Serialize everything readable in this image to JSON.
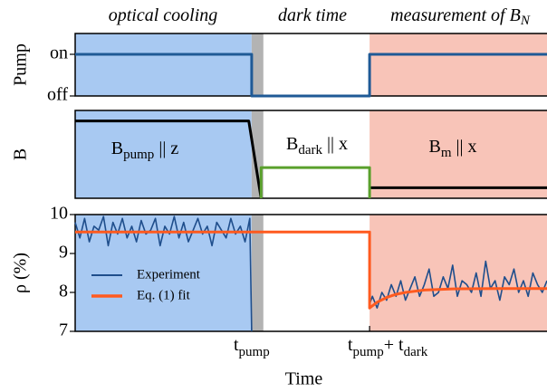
{
  "phases": [
    {
      "label": "optical cooling",
      "from": 0,
      "to": 37.4,
      "color": "#a8c9f2"
    },
    {
      "from": 37.4,
      "to": 39.9,
      "color": "#b3b3b3"
    },
    {
      "label": "dark time",
      "from": 39.9,
      "to": 62.4,
      "color": "#ffffff"
    },
    {
      "label": "measurement of B",
      "sub": "N",
      "from": 62.4,
      "to": 100,
      "color": "#f8c4b8"
    }
  ],
  "chart_data": [
    {
      "type": "line",
      "ylabel": "Pump",
      "xlim": [
        0,
        100
      ],
      "ylim": [
        0,
        1.5
      ],
      "yticks": [
        {
          "value": 1,
          "label": "on"
        },
        {
          "value": 0,
          "label": "off"
        }
      ],
      "series": [
        {
          "color": "#1f5a96",
          "x": [
            0,
            37.4,
            37.4,
            62.4,
            62.4,
            100
          ],
          "values": [
            1,
            1,
            0,
            0,
            1,
            1
          ]
        }
      ]
    },
    {
      "type": "line",
      "ylabel": "B",
      "xlim": [
        0,
        100
      ],
      "ylim": [
        0,
        1
      ],
      "annotations": [
        {
          "text": "B",
          "sub": "pump",
          "rest": " || z"
        },
        {
          "text": "B",
          "sub": "dark",
          "rest": " || x"
        },
        {
          "text": "B",
          "sub": "m",
          "rest": " || x"
        }
      ],
      "series": [
        {
          "color": "#000000",
          "x": [
            0,
            36.8,
            39.4
          ],
          "values": [
            0.88,
            0.88,
            0
          ]
        },
        {
          "color": "#000000",
          "x": [
            62.4,
            100
          ],
          "values": [
            0.12,
            0.12
          ]
        },
        {
          "color": "#5aa02c",
          "x": [
            39.4,
            39.4,
            62.4,
            62.4
          ],
          "values": [
            0,
            0.35,
            0.35,
            0
          ]
        }
      ]
    },
    {
      "type": "line",
      "ylabel": "ρ (%)",
      "xlabel": "Time",
      "xlim": [
        0,
        100
      ],
      "ylim": [
        7,
        10
      ],
      "yticks": [
        7,
        8,
        9,
        10
      ],
      "legend": "lower left",
      "xticks": [
        {
          "value": 37.4,
          "label": [
            {
              "text": "t"
            },
            {
              "sub": "pump"
            }
          ]
        },
        {
          "value": 62.4,
          "label": [
            {
              "text": "t"
            },
            {
              "sub": "pump"
            },
            {
              "text": "+ t"
            },
            {
              "sub": "dark"
            }
          ]
        }
      ],
      "series": [
        {
          "name": "Experiment",
          "color": "#1f4e8c",
          "x": [
            0,
            1,
            2,
            3,
            4,
            5,
            6,
            7,
            8,
            9,
            10,
            11,
            12,
            13,
            14,
            15,
            16,
            17,
            18,
            19,
            20,
            21,
            22,
            23,
            24,
            25,
            26,
            27,
            28,
            29,
            30,
            31,
            32,
            33,
            34,
            35,
            36,
            37,
            37.4,
            50,
            62.4,
            63,
            64,
            65,
            66,
            67,
            68,
            69,
            70,
            71,
            72,
            73,
            74,
            75,
            76,
            77,
            78,
            79,
            80,
            81,
            82,
            83,
            84,
            85,
            86,
            87,
            88,
            89,
            90,
            91,
            92,
            93,
            94,
            95,
            96,
            97,
            98,
            99,
            100
          ],
          "values": [
            9.8,
            9.4,
            9.9,
            9.3,
            9.7,
            9.6,
            9.95,
            9.2,
            9.8,
            9.5,
            9.9,
            9.4,
            9.7,
            9.3,
            9.85,
            9.5,
            9.6,
            9.9,
            9.2,
            9.7,
            9.5,
            9.95,
            9.4,
            9.8,
            9.3,
            9.6,
            9.9,
            9.5,
            9.7,
            9.2,
            9.8,
            9.6,
            9.4,
            9.9,
            9.5,
            9.7,
            9.3,
            9.9,
            7,
            null,
            7.7,
            7.9,
            7.6,
            8.0,
            7.8,
            8.2,
            7.9,
            8.3,
            7.8,
            8.1,
            8.4,
            7.9,
            8.2,
            8.6,
            7.9,
            8.0,
            8.4,
            8.1,
            8.7,
            7.9,
            8.3,
            8.2,
            8.0,
            8.5,
            7.9,
            8.8,
            8.1,
            8.3,
            7.8,
            8.4,
            8.2,
            8.6,
            8.0,
            8.3,
            7.9,
            8.5,
            8.2,
            8.0,
            8.3
          ]
        },
        {
          "name": "Eq. (1) fit",
          "color": "#ff5a1f",
          "x": [
            0,
            62.4,
            62.4,
            64,
            66,
            68,
            70,
            74,
            80,
            90,
            100
          ],
          "values": [
            9.55,
            9.55,
            7.6,
            7.75,
            7.87,
            7.95,
            8.0,
            8.06,
            8.09,
            8.1,
            8.1
          ]
        }
      ]
    }
  ]
}
